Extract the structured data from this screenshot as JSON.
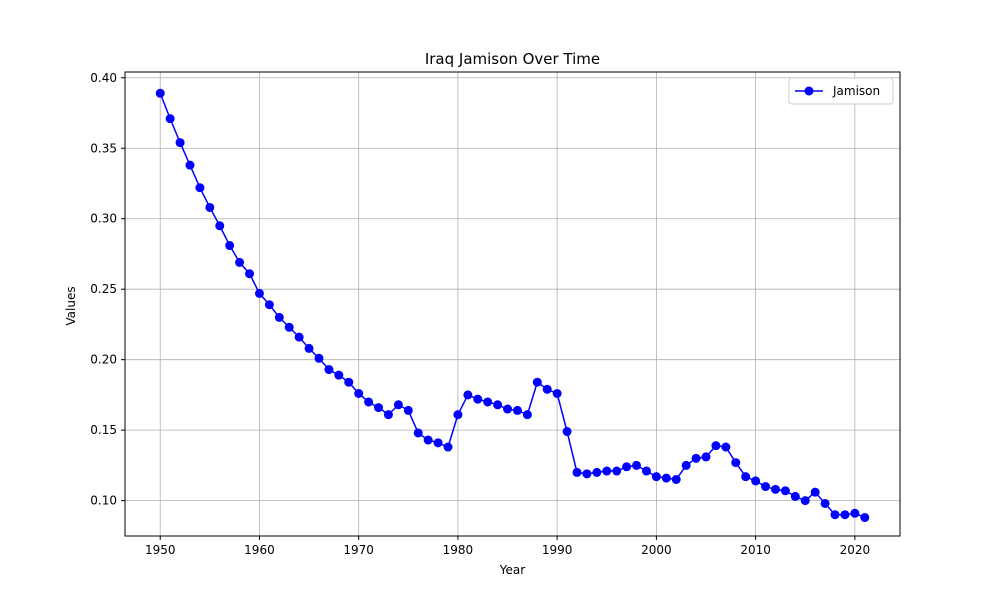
{
  "chart_data": {
    "type": "line",
    "title": "Iraq Jamison Over Time",
    "xlabel": "Year",
    "ylabel": "Values",
    "xlim": [
      1946.45,
      2024.55
    ],
    "ylim": [
      0.0749,
      0.4041
    ],
    "xticks": [
      1950,
      1960,
      1970,
      1980,
      1990,
      2000,
      2010,
      2020
    ],
    "yticks": [
      0.1,
      0.15,
      0.2,
      0.25,
      0.3,
      0.35,
      0.4
    ],
    "xtick_labels": [
      "1950",
      "1960",
      "1970",
      "1980",
      "1990",
      "2000",
      "2010",
      "2020"
    ],
    "ytick_labels": [
      "0.10",
      "0.15",
      "0.20",
      "0.25",
      "0.30",
      "0.35",
      "0.40"
    ],
    "grid": true,
    "legend_position": "top-right",
    "series": [
      {
        "name": "Jamison",
        "color": "#0000ff",
        "marker": "circle",
        "x": [
          1950,
          1951,
          1952,
          1953,
          1954,
          1955,
          1956,
          1957,
          1958,
          1959,
          1960,
          1961,
          1962,
          1963,
          1964,
          1965,
          1966,
          1967,
          1968,
          1969,
          1970,
          1971,
          1972,
          1973,
          1974,
          1975,
          1976,
          1977,
          1978,
          1979,
          1980,
          1981,
          1982,
          1983,
          1984,
          1985,
          1986,
          1987,
          1988,
          1989,
          1990,
          1991,
          1992,
          1993,
          1994,
          1995,
          1996,
          1997,
          1998,
          1999,
          2000,
          2001,
          2002,
          2003,
          2004,
          2005,
          2006,
          2007,
          2008,
          2009,
          2010,
          2011,
          2012,
          2013,
          2014,
          2015,
          2016,
          2017,
          2018,
          2019,
          2020,
          2021
        ],
        "y": [
          0.389,
          0.371,
          0.354,
          0.338,
          0.322,
          0.308,
          0.295,
          0.281,
          0.269,
          0.261,
          0.247,
          0.239,
          0.23,
          0.223,
          0.216,
          0.208,
          0.201,
          0.193,
          0.189,
          0.184,
          0.176,
          0.17,
          0.166,
          0.161,
          0.168,
          0.164,
          0.148,
          0.143,
          0.141,
          0.138,
          0.161,
          0.175,
          0.172,
          0.17,
          0.168,
          0.165,
          0.164,
          0.161,
          0.184,
          0.179,
          0.176,
          0.149,
          0.12,
          0.119,
          0.12,
          0.121,
          0.121,
          0.124,
          0.125,
          0.121,
          0.117,
          0.116,
          0.115,
          0.125,
          0.13,
          0.131,
          0.139,
          0.138,
          0.127,
          0.117,
          0.114,
          0.11,
          0.108,
          0.107,
          0.103,
          0.1,
          0.106,
          0.098,
          0.09,
          0.09,
          0.091,
          0.088
        ]
      }
    ]
  }
}
